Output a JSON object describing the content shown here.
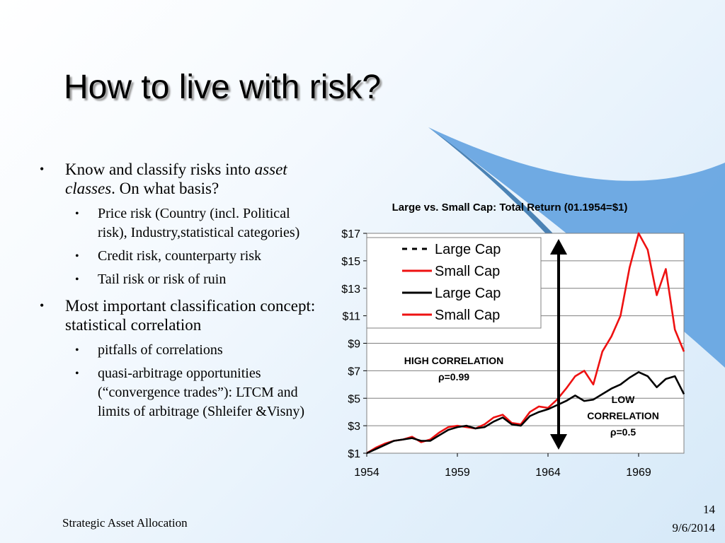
{
  "slide": {
    "title": "How to live with risk?",
    "bullets": [
      {
        "text_plain_pre": "Know and classify risks into ",
        "text_italic": "asset classes",
        "text_plain_post": ". On what basis?",
        "sub": [
          "Price risk (Country (incl. Political risk), Industry,statistical categories)",
          "Credit risk, counterparty risk",
          "Tail risk or risk of ruin"
        ]
      },
      {
        "text": "Most important classification concept: statistical correlation",
        "sub": [
          "pitfalls of correlations",
          "quasi-arbitrage opportunities (“convergence trades”): LTCM and limits of arbitrage (Shleifer &Visny)"
        ]
      }
    ],
    "footer_left": "Strategic Asset Allocation",
    "page_number": "14",
    "date": "9/6/2014"
  },
  "chart_data": {
    "type": "line",
    "title": "Large vs. Small Cap: Total Return (01.1954=$1)",
    "xlim": [
      1954,
      1971.5
    ],
    "ylim": [
      1,
      17
    ],
    "x_ticks": [
      1954,
      1959,
      1964,
      1969
    ],
    "y_ticks": [
      1,
      3,
      5,
      7,
      9,
      11,
      13,
      15,
      17
    ],
    "y_tick_labels": [
      "$1",
      "$3",
      "$5",
      "$7",
      "$9",
      "$11",
      "$13",
      "$15",
      "$17"
    ],
    "grid": true,
    "legend": {
      "placement": "top-left",
      "entries": [
        {
          "label": "Large Cap",
          "color": "#000000",
          "style": "dashed"
        },
        {
          "label": "Small Cap",
          "color": "#ee1111",
          "style": "solid"
        },
        {
          "label": "Large Cap",
          "color": "#000000",
          "style": "solid"
        },
        {
          "label": "Small Cap",
          "color": "#ee1111",
          "style": "solid"
        }
      ]
    },
    "series": [
      {
        "name": "Large Cap",
        "color": "#000000",
        "x": [
          1954.0,
          1954.5,
          1955.0,
          1955.5,
          1956.0,
          1956.5,
          1957.0,
          1957.5,
          1958.0,
          1958.5,
          1959.0,
          1959.5,
          1960.0,
          1960.5,
          1961.0,
          1961.5,
          1962.0,
          1962.5,
          1963.0,
          1963.5,
          1964.0,
          1964.5,
          1965.0,
          1965.5,
          1966.0,
          1966.5,
          1967.0,
          1967.5,
          1968.0,
          1968.5,
          1969.0,
          1969.5,
          1970.0,
          1970.5,
          1971.0,
          1971.5
        ],
        "y": [
          1.0,
          1.3,
          1.6,
          1.9,
          2.0,
          2.1,
          1.9,
          1.9,
          2.3,
          2.7,
          2.9,
          3.0,
          2.8,
          2.9,
          3.3,
          3.6,
          3.1,
          3.0,
          3.7,
          4.0,
          4.2,
          4.5,
          4.8,
          5.2,
          4.8,
          4.9,
          5.3,
          5.7,
          6.0,
          6.5,
          6.9,
          6.6,
          5.8,
          6.4,
          6.6,
          5.3
        ]
      },
      {
        "name": "Small Cap",
        "color": "#ee1111",
        "x": [
          1954.0,
          1954.5,
          1955.0,
          1955.5,
          1956.0,
          1956.5,
          1957.0,
          1957.5,
          1958.0,
          1958.5,
          1959.0,
          1959.5,
          1960.0,
          1960.5,
          1961.0,
          1961.5,
          1962.0,
          1962.5,
          1963.0,
          1963.5,
          1964.0,
          1964.5,
          1965.0,
          1965.5,
          1966.0,
          1966.5,
          1967.0,
          1967.5,
          1968.0,
          1968.5,
          1969.0,
          1969.5,
          1970.0,
          1970.5,
          1971.0,
          1971.5
        ],
        "y": [
          1.0,
          1.4,
          1.7,
          1.9,
          2.0,
          2.2,
          1.8,
          2.0,
          2.5,
          2.9,
          3.0,
          2.9,
          2.8,
          3.1,
          3.6,
          3.8,
          3.2,
          3.1,
          4.0,
          4.4,
          4.3,
          4.9,
          5.7,
          6.6,
          7.0,
          6.0,
          8.4,
          9.5,
          11.0,
          14.5,
          17.0,
          15.8,
          12.5,
          14.4,
          10.0,
          8.4
        ]
      }
    ],
    "annotations": [
      {
        "line1": "HIGH CORRELATION",
        "line2": "ρ=0.99"
      },
      {
        "line1": "LOW",
        "line2": "CORRELATION",
        "line3": "ρ=0.5"
      }
    ]
  }
}
